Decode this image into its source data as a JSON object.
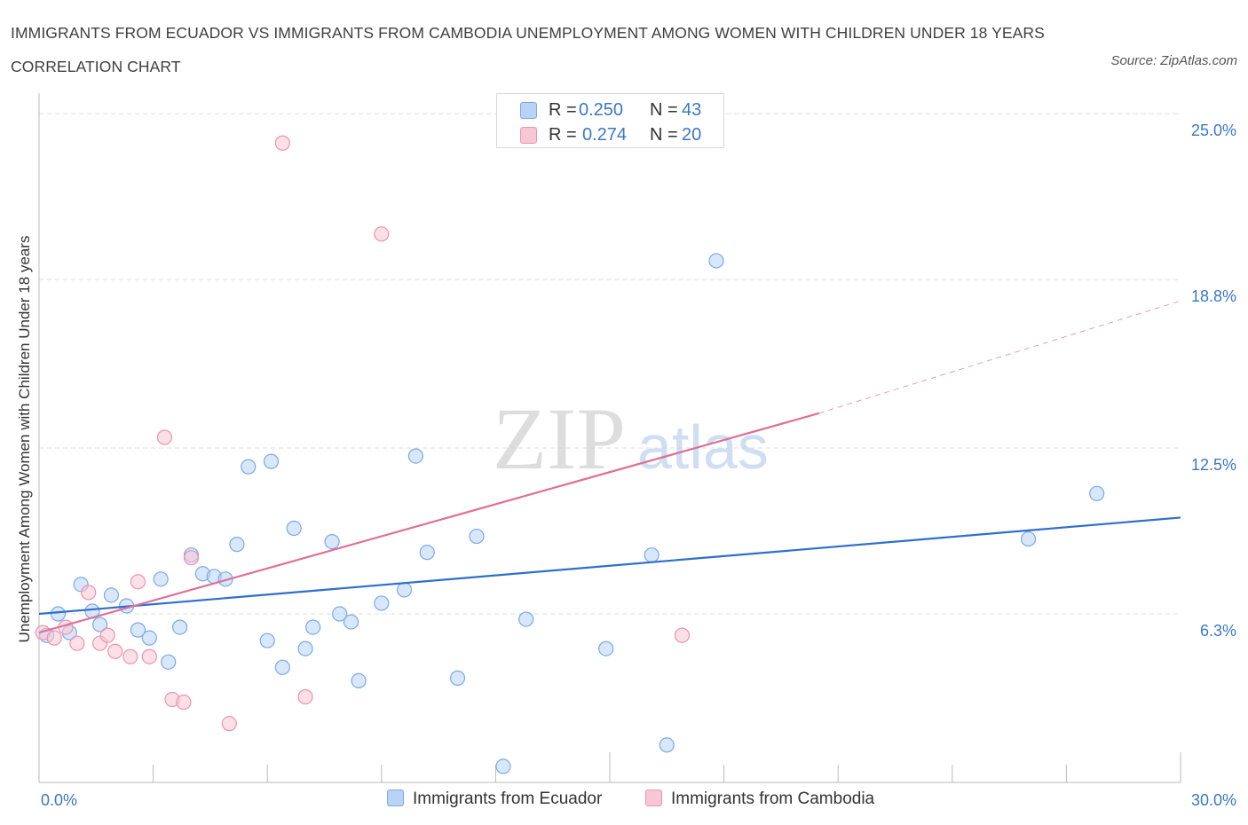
{
  "title": "IMMIGRANTS FROM ECUADOR VS IMMIGRANTS FROM CAMBODIA UNEMPLOYMENT AMONG WOMEN WITH CHILDREN UNDER 18 YEARS CORRELATION CHART",
  "source": "Source: ZipAtlas.com",
  "watermark": {
    "zip": "ZIP",
    "atlas": "atlas"
  },
  "legend": {
    "rows": [
      {
        "r_label": "R =",
        "r_value": "0.250",
        "n_label": "N =",
        "n_value": "43"
      },
      {
        "r_label": "R =",
        "r_value": "0.274",
        "n_label": "N =",
        "n_value": "20"
      }
    ]
  },
  "chart_data": {
    "type": "scatter",
    "ylabel": "Unemployment Among Women with Children Under 18 years",
    "x_tick_labels": [
      "0.0%",
      "30.0%"
    ],
    "y_tick_labels": [
      "6.3%",
      "12.5%",
      "18.8%",
      "25.0%"
    ],
    "y_ticks": [
      6.3,
      12.5,
      18.8,
      25.0
    ],
    "xlim": [
      0,
      30
    ],
    "ylim": [
      0,
      25.6
    ],
    "grid": true,
    "legend_position": "top-center",
    "colors": {
      "ecuador_fill": "#b8d3f5",
      "ecuador_stroke": "#7aaae6",
      "ecuador_line": "#2e6fcc",
      "cambodia_fill": "#f7c7d6",
      "cambodia_stroke": "#ee93ae",
      "cambodia_line": "#e06f97",
      "axis_text": "#3a77c6"
    },
    "series": [
      {
        "name": "Immigrants from Ecuador",
        "trend": {
          "x0": 0,
          "y0": 6.3,
          "x1": 30,
          "y1": 9.9
        },
        "points": [
          [
            0.2,
            5.5
          ],
          [
            0.5,
            6.3
          ],
          [
            0.8,
            5.6
          ],
          [
            1.1,
            7.4
          ],
          [
            1.4,
            6.4
          ],
          [
            1.6,
            5.9
          ],
          [
            1.9,
            7.0
          ],
          [
            2.3,
            6.6
          ],
          [
            2.6,
            5.7
          ],
          [
            2.9,
            5.4
          ],
          [
            3.2,
            7.6
          ],
          [
            3.4,
            4.5
          ],
          [
            3.7,
            5.8
          ],
          [
            4.0,
            8.5
          ],
          [
            4.3,
            7.8
          ],
          [
            4.6,
            7.7
          ],
          [
            4.9,
            7.6
          ],
          [
            5.2,
            8.9
          ],
          [
            5.5,
            11.8
          ],
          [
            6.0,
            5.3
          ],
          [
            6.1,
            12.0
          ],
          [
            6.4,
            4.3
          ],
          [
            6.7,
            9.5
          ],
          [
            7.0,
            5.0
          ],
          [
            7.2,
            5.8
          ],
          [
            7.7,
            9.0
          ],
          [
            7.9,
            6.3
          ],
          [
            8.2,
            6.0
          ],
          [
            8.4,
            3.8
          ],
          [
            9.0,
            6.7
          ],
          [
            9.6,
            7.2
          ],
          [
            9.9,
            12.2
          ],
          [
            10.2,
            8.6
          ],
          [
            11.0,
            3.9
          ],
          [
            11.5,
            9.2
          ],
          [
            12.2,
            0.6
          ],
          [
            12.8,
            6.1
          ],
          [
            14.9,
            5.0
          ],
          [
            16.1,
            8.5
          ],
          [
            16.5,
            1.4
          ],
          [
            17.8,
            19.5
          ],
          [
            26.0,
            9.1
          ],
          [
            27.8,
            10.8
          ]
        ]
      },
      {
        "name": "Immigrants from Cambodia",
        "trend": {
          "x0": 0,
          "y0": 5.6,
          "x1": 20.5,
          "y1": 13.8
        },
        "trend_dashed": {
          "x0": 20.5,
          "y0": 13.8,
          "x1": 30,
          "y1": 18.0
        },
        "points": [
          [
            0.1,
            5.6
          ],
          [
            0.4,
            5.4
          ],
          [
            0.7,
            5.8
          ],
          [
            1.0,
            5.2
          ],
          [
            1.3,
            7.1
          ],
          [
            1.6,
            5.2
          ],
          [
            1.8,
            5.5
          ],
          [
            2.0,
            4.9
          ],
          [
            2.4,
            4.7
          ],
          [
            2.6,
            7.5
          ],
          [
            2.9,
            4.7
          ],
          [
            3.3,
            12.9
          ],
          [
            3.5,
            3.1
          ],
          [
            3.8,
            3.0
          ],
          [
            4.0,
            8.4
          ],
          [
            5.0,
            2.2
          ],
          [
            6.4,
            23.9
          ],
          [
            7.0,
            3.2
          ],
          [
            9.0,
            20.5
          ],
          [
            16.9,
            5.5
          ]
        ]
      }
    ]
  }
}
